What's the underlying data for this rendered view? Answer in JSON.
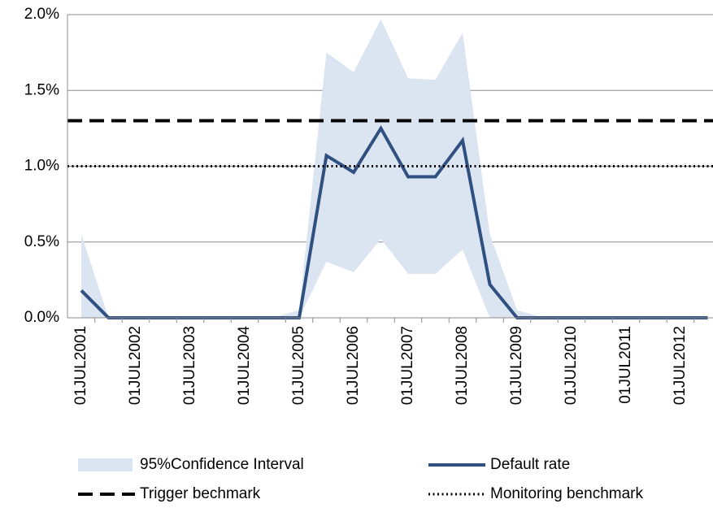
{
  "chart_data": {
    "type": "line",
    "categories": [
      "01JUL2001",
      null,
      "01JUL2002",
      null,
      "01JUL2003",
      null,
      "01JUL2004",
      null,
      "01JUL2005",
      null,
      "01JUL2006",
      null,
      "01JUL2007",
      null,
      "01JUL2008",
      null,
      "01JUL2009",
      null,
      "01JUL2010",
      null,
      "01JUL2011",
      null,
      "01JUL2012",
      null
    ],
    "series": [
      {
        "name": "95%Confidence Interval",
        "type": "band",
        "color": "#dbe4f1",
        "upper": [
          0.55,
          0,
          0,
          0,
          0,
          0,
          0,
          0,
          0.05,
          1.75,
          1.62,
          1.97,
          1.58,
          1.57,
          1.88,
          0.55,
          0.05,
          0,
          0,
          0,
          0,
          0,
          0,
          0
        ],
        "lower": [
          0,
          0,
          0,
          0,
          0,
          0,
          0,
          0,
          0,
          0.37,
          0.3,
          0.52,
          0.29,
          0.29,
          0.45,
          0,
          0,
          0,
          0,
          0,
          0,
          0,
          0,
          0
        ]
      },
      {
        "name": "Default rate",
        "type": "line",
        "color": "#2f5080",
        "values": [
          0.18,
          0,
          0,
          0,
          0,
          0,
          0,
          0,
          0,
          1.07,
          0.96,
          1.25,
          0.93,
          0.93,
          1.17,
          0.22,
          0,
          0,
          0,
          0,
          0,
          0,
          0,
          0
        ]
      }
    ],
    "reference_lines": [
      {
        "name": "Trigger bechmark",
        "value": 1.3,
        "style": "dashed",
        "color": "#000000"
      },
      {
        "name": "Monitoring benchmark",
        "value": 1.0,
        "style": "dotted",
        "color": "#000000"
      }
    ],
    "ylim": [
      0,
      2.0
    ],
    "yticks": [
      {
        "value": 0,
        "label": "0.0%"
      },
      {
        "value": 0.5,
        "label": "0.5%"
      },
      {
        "value": 1.0,
        "label": "1.0%"
      },
      {
        "value": 1.5,
        "label": "1.5%"
      },
      {
        "value": 2.0,
        "label": "2.0%"
      }
    ],
    "grid": true
  }
}
